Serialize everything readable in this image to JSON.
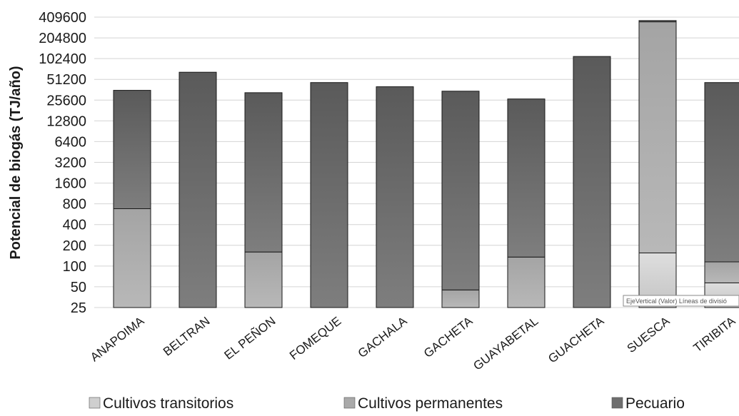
{
  "chart_data": {
    "type": "bar",
    "stacked": true,
    "scale": "log2",
    "ylabel": "Potencial de biogás (TJ/año)",
    "xlabel": "",
    "title": "",
    "ylim": [
      25,
      409600
    ],
    "y_ticks": [
      25,
      50,
      100,
      200,
      400,
      800,
      1600,
      3200,
      6400,
      12800,
      25600,
      51200,
      102400,
      204800,
      409600
    ],
    "y_tick_labels": [
      "25",
      "50",
      "100",
      "200",
      "400",
      "800",
      "1600",
      "3200",
      "6400",
      "12800",
      "25600",
      "51200",
      "102400",
      "204800",
      "409600"
    ],
    "grid": true,
    "legend_position": "bottom",
    "categories": [
      "ANAPOIMA",
      "BELTRAN",
      "EL PEÑON",
      "FOMEQUE",
      "GACHALA",
      "GACHETA",
      "GUAYABETAL",
      "GUACHETA",
      "SUESCA",
      "TIRIBITA"
    ],
    "series": [
      {
        "name": "Cultivos transitorios",
        "color": "#cfcfcf",
        "values": [
          0,
          0,
          0,
          0,
          0,
          0,
          0,
          0,
          155,
          57
        ]
      },
      {
        "name": "Cultivos permanentes",
        "color": "#a9a9a9",
        "values": [
          680,
          0,
          160,
          0,
          0,
          45,
          135,
          0,
          350000,
          58
        ]
      },
      {
        "name": "Pecuario",
        "color": "#6e6e6e",
        "values": [
          34820,
          65000,
          32640,
          46000,
          40000,
          34455,
          26465,
          110000,
          15000,
          45885
        ]
      }
    ]
  },
  "tooltip": {
    "text": "EjeVertical (Valor)  Líneas de divisió"
  }
}
